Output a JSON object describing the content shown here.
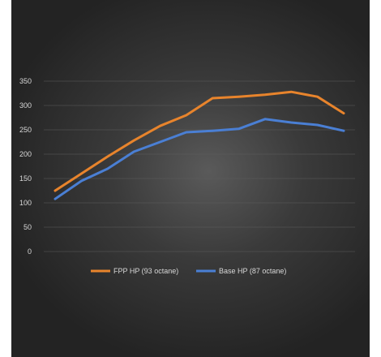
{
  "chart_data": {
    "type": "line",
    "x": [
      1,
      2,
      3,
      4,
      5,
      6,
      7,
      8,
      9,
      10,
      11,
      12
    ],
    "series": [
      {
        "name": "FPP HP (93 octane)",
        "color": "#e8842c",
        "values": [
          125,
          160,
          195,
          228,
          258,
          280,
          315,
          318,
          322,
          328,
          318,
          284
        ]
      },
      {
        "name": "Base HP (87 octane)",
        "color": "#4a7fd4",
        "values": [
          108,
          145,
          170,
          205,
          225,
          245,
          248,
          252,
          272,
          265,
          260,
          248
        ]
      }
    ],
    "yticks": [
      0,
      50,
      100,
      150,
      200,
      250,
      300,
      350
    ],
    "ylim": [
      0,
      350
    ],
    "grid": true,
    "legend": "bottom"
  }
}
